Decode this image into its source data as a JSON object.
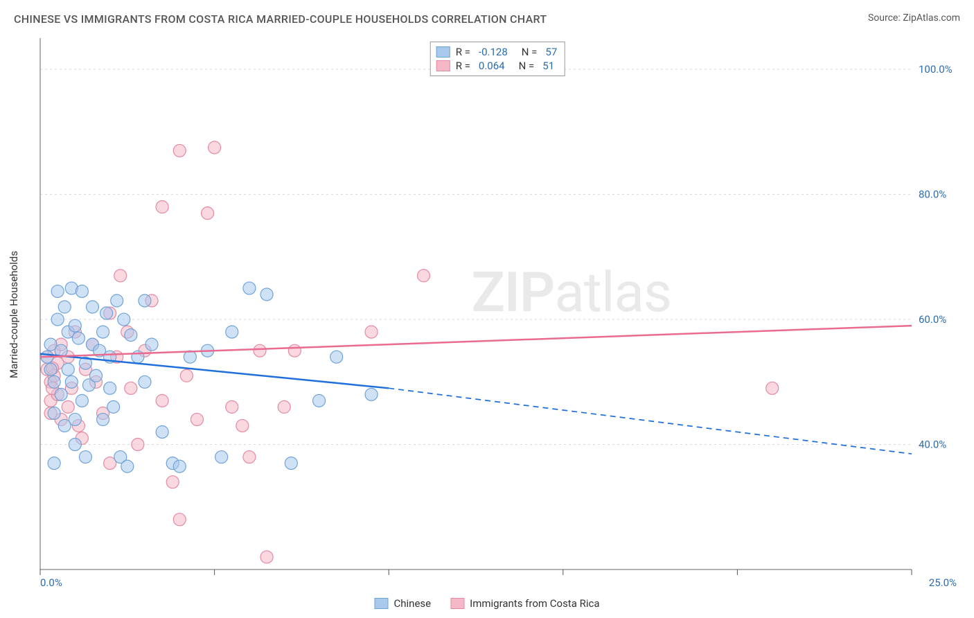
{
  "header": {
    "title": "CHINESE VS IMMIGRANTS FROM COSTA RICA MARRIED-COUPLE HOUSEHOLDS CORRELATION CHART",
    "source": "Source: ZipAtlas.com"
  },
  "watermark": {
    "left": "ZIP",
    "right": "atlas"
  },
  "chart": {
    "type": "scatter",
    "ylabel": "Married-couple Households",
    "background_color": "#ffffff",
    "grid_color": "#d7d7d7",
    "axis_color": "#666666",
    "tick_color": "#555555",
    "label_color": "#2b6cb0",
    "x": {
      "min": 0,
      "max": 25,
      "ticks": [
        0,
        5,
        10,
        15,
        20,
        25
      ],
      "tick_labels": [
        "0.0%",
        "",
        "",
        "",
        "",
        "25.0%"
      ]
    },
    "y": {
      "min": 20,
      "max": 105,
      "gridlines": [
        40,
        60,
        80,
        100
      ],
      "tick_labels": [
        "40.0%",
        "60.0%",
        "80.0%",
        "100.0%"
      ]
    },
    "series": [
      {
        "id": "chinese",
        "label": "Chinese",
        "fill": "#a8c8ec",
        "stroke": "#6fa3d8",
        "fill_opacity": 0.55,
        "marker_r": 9,
        "R": "-0.128",
        "N": "57",
        "trend": {
          "color": "#1e6fd9",
          "width": 2.5,
          "solid_to_x": 10,
          "y_at_xmin": 54.5,
          "y_at_solid_end": 49,
          "y_at_xmax": 38.5
        },
        "points": [
          [
            0.2,
            54
          ],
          [
            0.3,
            52
          ],
          [
            0.3,
            56
          ],
          [
            0.4,
            50
          ],
          [
            0.4,
            45
          ],
          [
            0.5,
            60
          ],
          [
            0.5,
            64.5
          ],
          [
            0.6,
            55
          ],
          [
            0.6,
            48
          ],
          [
            0.7,
            43
          ],
          [
            0.7,
            62
          ],
          [
            0.8,
            58
          ],
          [
            0.8,
            52
          ],
          [
            0.9,
            65
          ],
          [
            0.9,
            50
          ],
          [
            1.0,
            40
          ],
          [
            1.0,
            59
          ],
          [
            1.1,
            57
          ],
          [
            1.2,
            47
          ],
          [
            1.2,
            64.5
          ],
          [
            1.3,
            53
          ],
          [
            1.4,
            49.5
          ],
          [
            1.5,
            62
          ],
          [
            1.5,
            56
          ],
          [
            1.6,
            51
          ],
          [
            1.7,
            55
          ],
          [
            1.8,
            58
          ],
          [
            1.8,
            44
          ],
          [
            1.9,
            61
          ],
          [
            2.0,
            54
          ],
          [
            2.0,
            49
          ],
          [
            2.2,
            63
          ],
          [
            2.3,
            38
          ],
          [
            2.4,
            60
          ],
          [
            2.5,
            36.5
          ],
          [
            2.6,
            57.5
          ],
          [
            2.8,
            54
          ],
          [
            3.0,
            50
          ],
          [
            3.0,
            63
          ],
          [
            3.2,
            56
          ],
          [
            3.5,
            42
          ],
          [
            3.8,
            37
          ],
          [
            4.0,
            36.5
          ],
          [
            4.3,
            54
          ],
          [
            4.8,
            55
          ],
          [
            5.2,
            38
          ],
          [
            5.5,
            58
          ],
          [
            6.0,
            65
          ],
          [
            6.5,
            64
          ],
          [
            7.2,
            37
          ],
          [
            8.0,
            47
          ],
          [
            8.5,
            54
          ],
          [
            9.5,
            48
          ],
          [
            0.4,
            37
          ],
          [
            1.0,
            44
          ],
          [
            1.3,
            38
          ],
          [
            2.1,
            46
          ]
        ]
      },
      {
        "id": "costa_rica",
        "label": "Immigrants from Costa Rica",
        "fill": "#f4b8c7",
        "stroke": "#e38aa3",
        "fill_opacity": 0.55,
        "marker_r": 9,
        "R": "0.064",
        "N": "51",
        "trend": {
          "color": "#e96b8f",
          "width": 2.5,
          "solid_to_x": 25,
          "y_at_xmin": 54,
          "y_at_solid_end": 59,
          "y_at_xmax": 59
        },
        "points": [
          [
            0.2,
            52
          ],
          [
            0.2,
            54
          ],
          [
            0.3,
            50
          ],
          [
            0.3,
            47
          ],
          [
            0.4,
            55
          ],
          [
            0.4,
            51
          ],
          [
            0.5,
            53
          ],
          [
            0.5,
            48
          ],
          [
            0.6,
            44
          ],
          [
            0.6,
            56
          ],
          [
            0.8,
            54
          ],
          [
            0.8,
            46
          ],
          [
            0.9,
            49
          ],
          [
            1.0,
            58
          ],
          [
            1.1,
            43
          ],
          [
            1.2,
            41
          ],
          [
            1.3,
            52
          ],
          [
            1.5,
            56
          ],
          [
            1.6,
            50
          ],
          [
            1.8,
            45
          ],
          [
            2.0,
            61
          ],
          [
            2.0,
            37
          ],
          [
            2.2,
            54
          ],
          [
            2.3,
            67
          ],
          [
            2.5,
            58
          ],
          [
            2.6,
            49
          ],
          [
            2.8,
            40
          ],
          [
            3.0,
            55
          ],
          [
            3.2,
            63
          ],
          [
            3.5,
            47
          ],
          [
            3.5,
            78
          ],
          [
            3.8,
            34
          ],
          [
            4.0,
            28
          ],
          [
            4.0,
            87
          ],
          [
            4.2,
            51
          ],
          [
            4.5,
            44
          ],
          [
            4.8,
            77
          ],
          [
            5.0,
            87.5
          ],
          [
            5.5,
            46
          ],
          [
            5.8,
            43
          ],
          [
            6.0,
            38
          ],
          [
            6.3,
            55
          ],
          [
            6.5,
            22
          ],
          [
            7.0,
            46
          ],
          [
            7.3,
            55
          ],
          [
            9.5,
            58
          ],
          [
            11.0,
            67
          ],
          [
            0.3,
            45
          ],
          [
            0.35,
            49
          ],
          [
            0.35,
            52.2
          ],
          [
            21.0,
            49
          ]
        ]
      }
    ],
    "legend": {
      "corr_box_border": "#999999",
      "swatch_blue_fill": "#a8c8ec",
      "swatch_blue_stroke": "#6fa3d8",
      "swatch_pink_fill": "#f4b8c7",
      "swatch_pink_stroke": "#e38aa3"
    }
  }
}
